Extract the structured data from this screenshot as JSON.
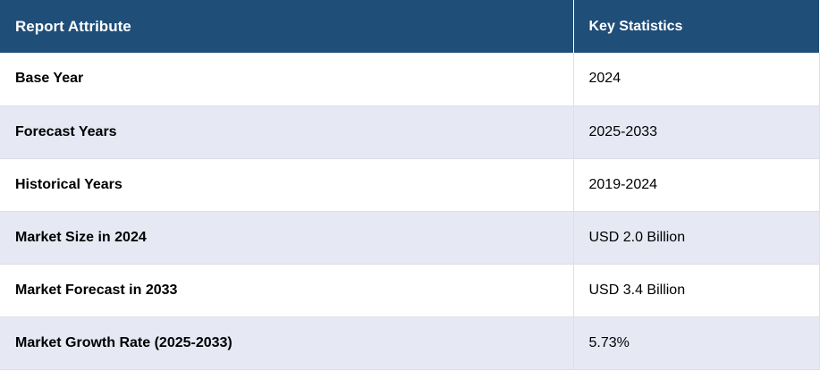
{
  "table": {
    "headers": {
      "attribute": "Report Attribute",
      "statistics": "Key Statistics"
    },
    "rows": [
      {
        "attribute": "Base Year",
        "value": "2024"
      },
      {
        "attribute": "Forecast Years",
        "value": "2025-2033"
      },
      {
        "attribute": "Historical Years",
        "value": "2019-2024"
      },
      {
        "attribute": "Market Size in 2024",
        "value": "USD 2.0 Billion"
      },
      {
        "attribute": "Market Forecast in 2033",
        "value": "USD 3.4 Billion"
      },
      {
        "attribute": "Market Growth Rate (2025-2033)",
        "value": "5.73%"
      }
    ]
  },
  "colors": {
    "header_bg": "#1f4e79",
    "row_alt_bg": "#e6e9f4"
  }
}
